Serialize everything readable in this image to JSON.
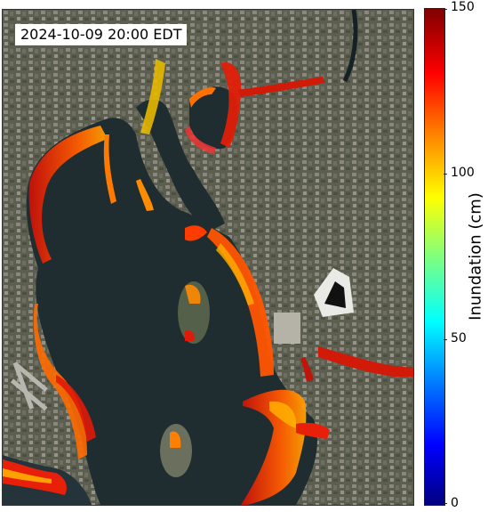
{
  "timestamp": "2024-10-09 20:00 EDT",
  "colorbar": {
    "label": "Inundation (cm)",
    "min": 0,
    "max": 150,
    "ticks": [
      "0",
      "50",
      "100",
      "150"
    ],
    "colormap": "jet"
  },
  "colors": {
    "water": "#1f2d30",
    "land": "#4a4f3d",
    "urban": "#7a7a72",
    "inundation_high": "#d41a0a",
    "inundation_mid": "#ff8c00",
    "inundation_low": "#ffd400"
  }
}
